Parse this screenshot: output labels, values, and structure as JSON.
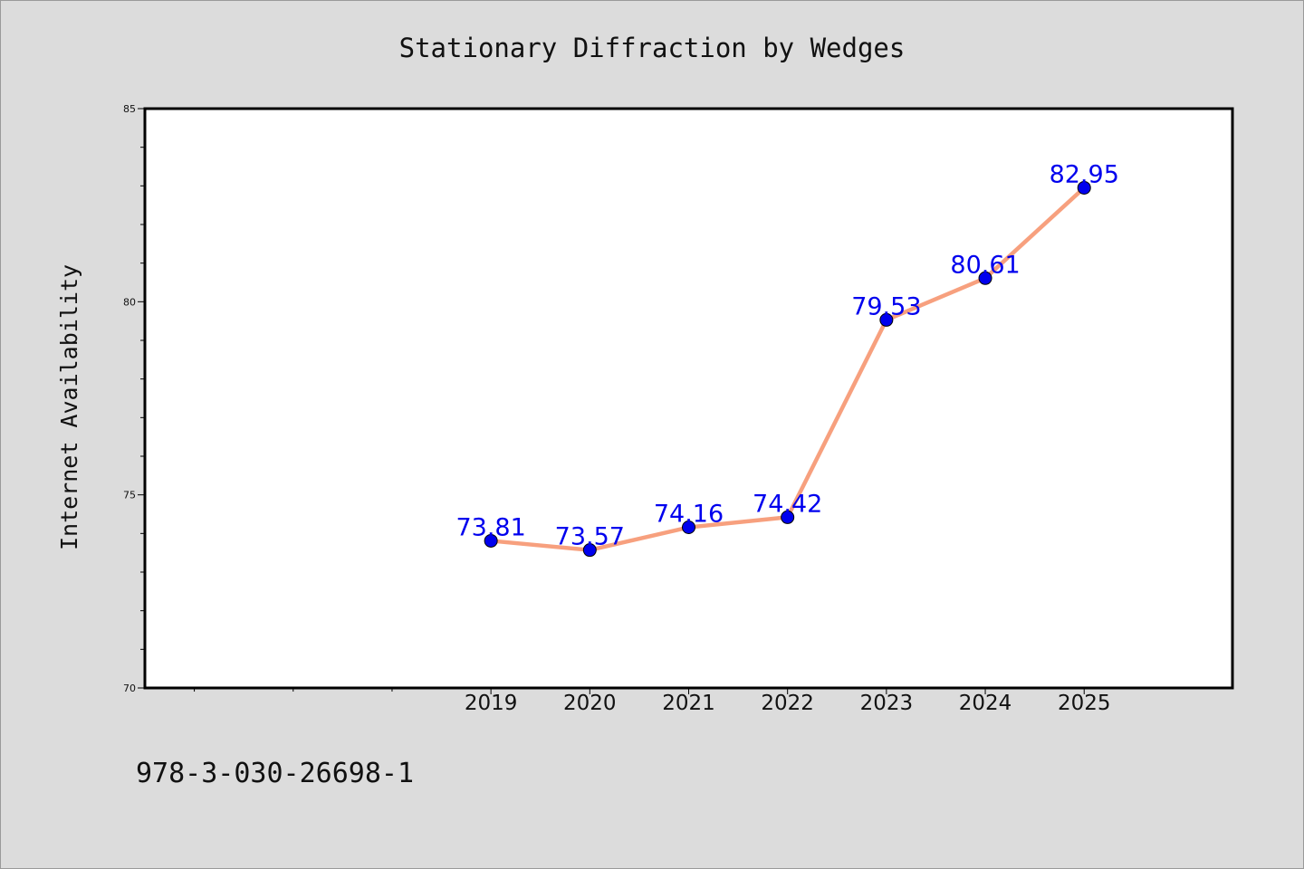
{
  "chart_data": {
    "type": "line",
    "title": "Stationary Diffraction by Wedges",
    "xlabel": "",
    "ylabel": "Internet Availability",
    "x": [
      "2019",
      "2020",
      "2021",
      "2022",
      "2023",
      "2024",
      "2025"
    ],
    "x_range": [
      2015.5,
      2026.5
    ],
    "minor_x_ticks": [
      2016,
      2017,
      2018
    ],
    "series": [
      {
        "values": [
          73.81,
          73.57,
          74.16,
          74.42,
          79.53,
          80.61,
          82.95
        ]
      }
    ],
    "data_labels": [
      "73.81",
      "73.57",
      "74.16",
      "74.42",
      "79.53",
      "80.61",
      "82.95"
    ],
    "ylim": [
      70,
      85
    ],
    "y_major_ticks": [
      70,
      75,
      80,
      85
    ],
    "y_minor_step": 1,
    "y_tick_labels": [
      "70",
      "75",
      "80",
      "85"
    ],
    "grid": false,
    "line_color": "#f7a07e",
    "marker_color": "#0000ee",
    "label_color": "#0000ee"
  },
  "footer_text": "978-3-030-26698-1"
}
